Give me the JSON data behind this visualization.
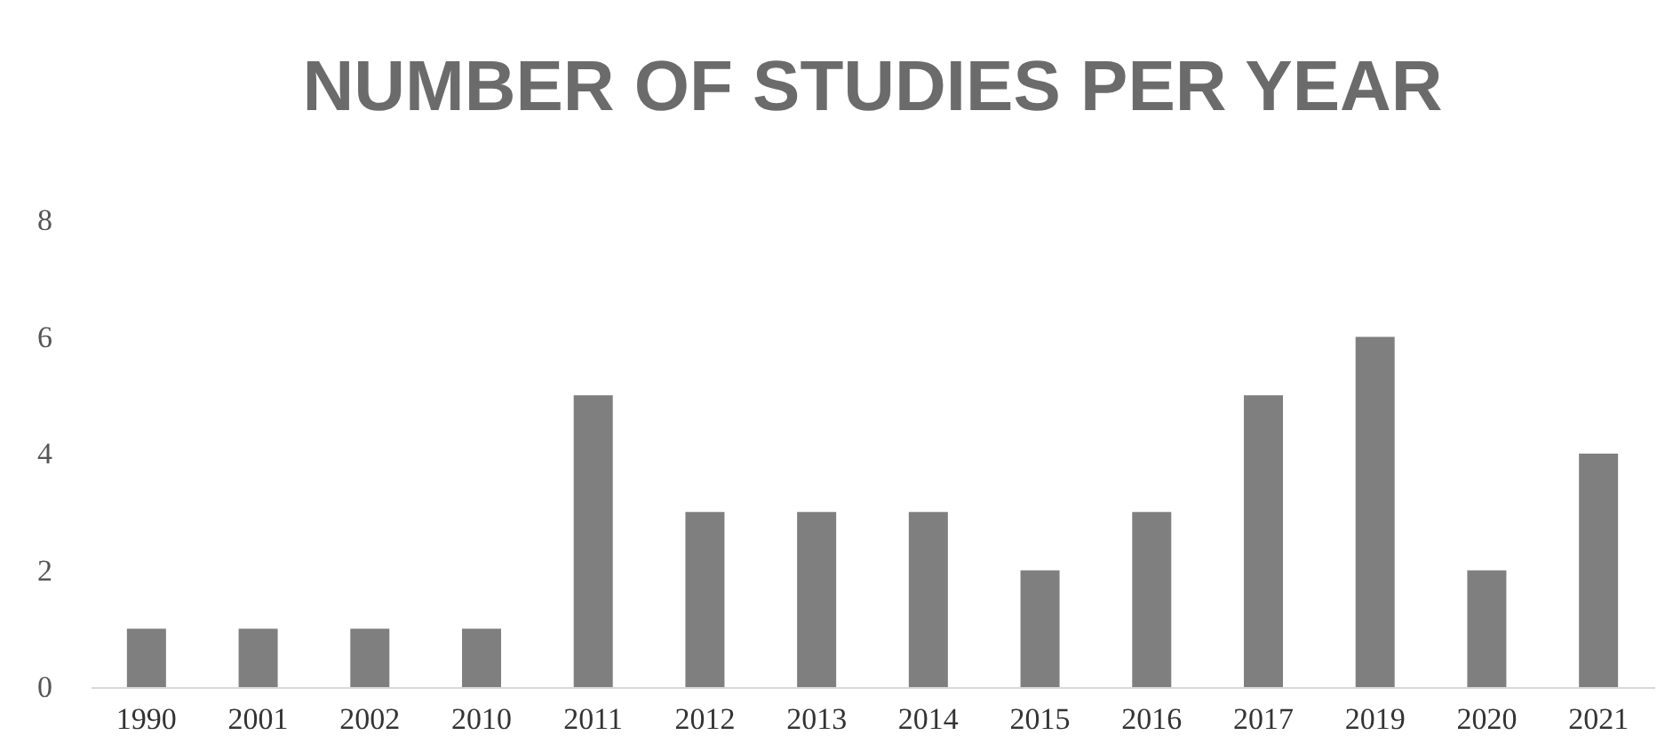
{
  "chart_data": {
    "type": "bar",
    "title": "NUMBER OF STUDIES PER YEAR",
    "categories": [
      "1990",
      "2001",
      "2002",
      "2010",
      "2011",
      "2012",
      "2013",
      "2014",
      "2015",
      "2016",
      "2017",
      "2019",
      "2020",
      "2021"
    ],
    "values": [
      1,
      1,
      1,
      1,
      5,
      3,
      3,
      3,
      2,
      3,
      5,
      6,
      2,
      4
    ],
    "color": "#7f7f7f",
    "ylim": [
      0,
      8
    ],
    "yticks": [
      0,
      2,
      4,
      6,
      8
    ]
  }
}
